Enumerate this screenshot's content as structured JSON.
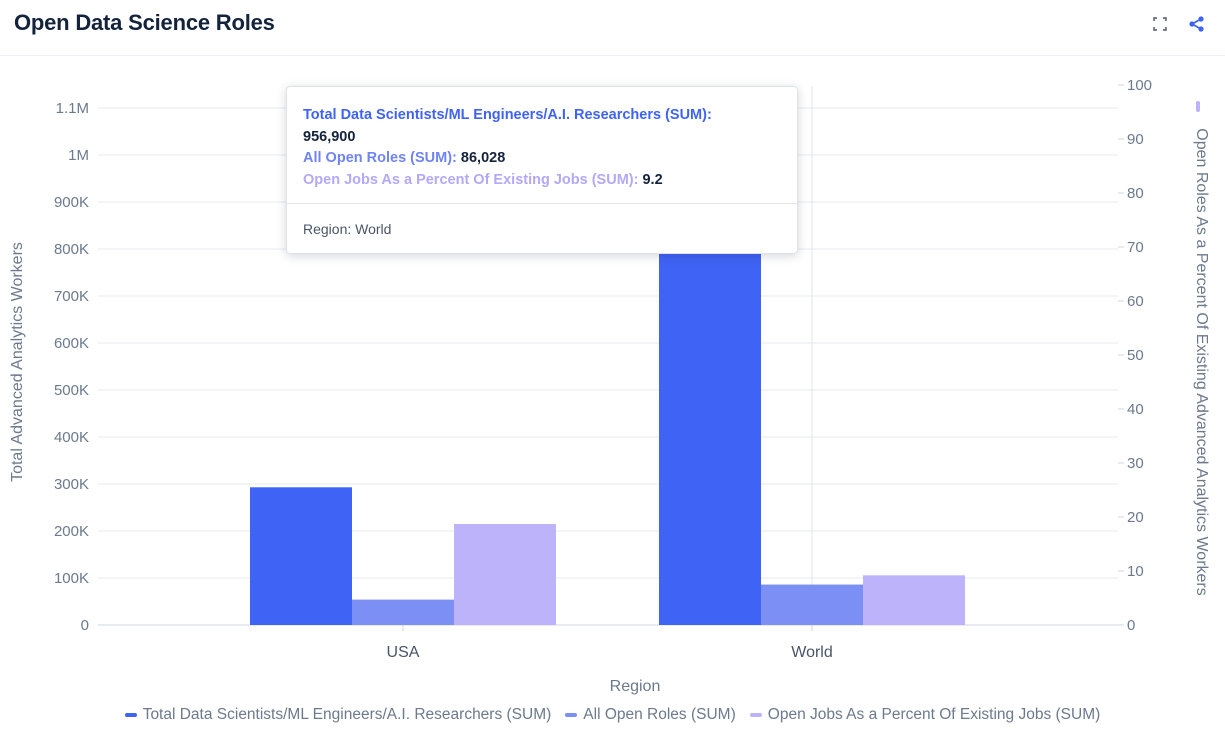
{
  "header": {
    "title": "Open Data Science Roles"
  },
  "colors": {
    "series1": "#3f63f5",
    "series2": "#7b8ff5",
    "series3": "#bdb3fb",
    "grid": "#e6e9ee",
    "tick": "#6b7a8c"
  },
  "chart_data": {
    "type": "bar",
    "categories": [
      "USA",
      "World"
    ],
    "xlabel": "Region",
    "ylabel": "Total Advanced Analytics Workers",
    "y2label": "Open Roles As a Percent Of Existing Advanced Analytics Workers",
    "ylim": [
      0,
      1150000
    ],
    "y2lim": [
      0,
      100
    ],
    "yticks": [
      0,
      100000,
      200000,
      300000,
      400000,
      500000,
      600000,
      700000,
      800000,
      900000,
      1000000,
      1100000
    ],
    "yticklabels": [
      "0",
      "100K",
      "200K",
      "300K",
      "400K",
      "500K",
      "600K",
      "700K",
      "800K",
      "900K",
      "1M",
      "1.1M"
    ],
    "y2ticks": [
      0,
      10,
      20,
      30,
      40,
      50,
      60,
      70,
      80,
      90,
      100
    ],
    "grid": true,
    "legend_position": "bottom",
    "series": [
      {
        "name": "Total Data Scientists/ML Engineers/A.I. Researchers (SUM)",
        "axis": "left",
        "values": [
          293000,
          956900
        ]
      },
      {
        "name": "All Open Roles (SUM)",
        "axis": "left",
        "values": [
          54000,
          86028
        ]
      },
      {
        "name": "Open Jobs As a Percent Of Existing Jobs (SUM)",
        "axis": "right",
        "values": [
          18.7,
          9.2
        ]
      }
    ]
  },
  "tooltip": {
    "series1_label": "Total Data Scientists/ML Engineers/A.I. Researchers (SUM):",
    "series1_value": "956,900",
    "series2_label": "All Open Roles (SUM):",
    "series2_value": "86,028",
    "series3_label": "Open Jobs As a Percent Of Existing Jobs (SUM):",
    "series3_value": "9.2",
    "footer": "Region: World"
  },
  "legend": {
    "items": [
      {
        "label": "Total Data Scientists/ML Engineers/A.I. Researchers (SUM)"
      },
      {
        "label": "All Open Roles (SUM)"
      },
      {
        "label": "Open Jobs As a Percent Of Existing Jobs (SUM)"
      }
    ]
  },
  "icons": {
    "expand": "expand-icon",
    "share": "share-icon"
  }
}
